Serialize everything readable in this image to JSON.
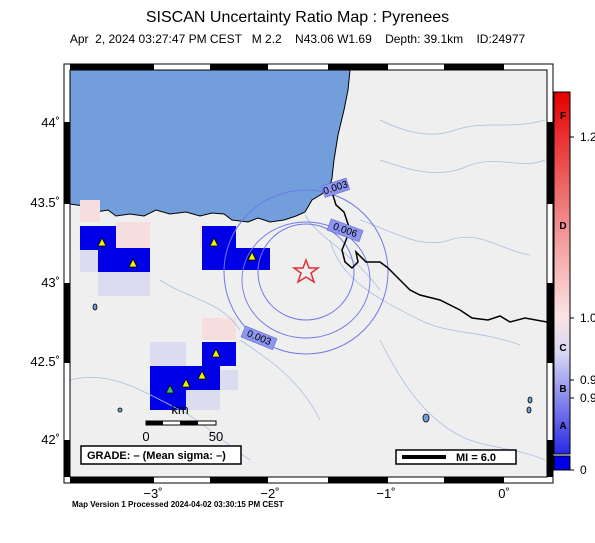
{
  "header": {
    "title": "SISCAN Uncertainty Ratio Map : Pyrenees",
    "subtitle": "Apr  2, 2024 03:27:47 PM CEST   M 2.2    N43.06 W1.69    Depth: 39.1km    ID:24977"
  },
  "axes": {
    "lat_ticks": [
      "44˚",
      "43.5˚",
      "43˚",
      "42.5˚",
      "42˚"
    ],
    "lon_ticks": [
      "−3˚",
      "−2˚",
      "−1˚",
      "0˚"
    ]
  },
  "contours": [
    "0.003",
    "0.006",
    "0.003"
  ],
  "scale_bar": {
    "unit": "km",
    "min": "0",
    "max": "50"
  },
  "grade_box": "GRADE: – (Mean sigma: –)",
  "mi_box": "MI = 6.0",
  "colorbar": {
    "values": [
      "1.2",
      "1.0",
      "0.9",
      "0.9",
      "0"
    ],
    "grades": [
      "F",
      "D",
      "C",
      "B",
      "A"
    ]
  },
  "footer": "Map Version 1 Processed 2024-04-02 03:30:15 PM CEST",
  "colors": {
    "sea": "#729fdc",
    "land": "#efefef",
    "high_uncertainty": "#0000e6",
    "epicenter": "#e03030",
    "station": "#f0f000"
  },
  "map_markers": {
    "epicenter_icon": "star-icon",
    "station_icon": "triangle-icon"
  }
}
